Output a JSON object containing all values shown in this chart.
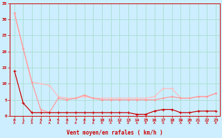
{
  "xlabel": "Vent moyen/en rafales ( km/h )",
  "bg_color": "#cceeff",
  "grid_color": "#aaddcc",
  "x": [
    0,
    1,
    2,
    3,
    4,
    5,
    6,
    7,
    8,
    9,
    10,
    11,
    12,
    13,
    14,
    15,
    16,
    17,
    18,
    19,
    20,
    21,
    22,
    23
  ],
  "line_dark_red": [
    14,
    4,
    1,
    1,
    1,
    1,
    1,
    1,
    1,
    1,
    1,
    1,
    1,
    1,
    0.5,
    0.5,
    1.5,
    2,
    2,
    1,
    1,
    1.5,
    1.5,
    1.5
  ],
  "line_light_pink1": [
    32,
    21,
    10.5,
    2,
    1,
    5.5,
    5,
    5.5,
    6.5,
    5.5,
    5,
    5,
    5,
    5,
    5,
    5,
    5,
    5.5,
    6,
    5.5,
    5.5,
    6,
    6,
    7
  ],
  "line_light_pink2": [
    32,
    21,
    10.5,
    10,
    9.5,
    6,
    5.5,
    5.5,
    6,
    5.5,
    5.5,
    5.5,
    5.5,
    5.5,
    5.5,
    5.5,
    6,
    8.5,
    8.5,
    5.5,
    5.5,
    6,
    6,
    7
  ],
  "ylim": [
    0,
    35
  ],
  "yticks": [
    0,
    5,
    10,
    15,
    20,
    25,
    30,
    35
  ],
  "dark_red": "#cc0000",
  "light_pink1": "#ff9999",
  "light_pink2": "#ffbbbb",
  "wind_angles": [
    225,
    45,
    315,
    315,
    315,
    315,
    315,
    315,
    315,
    270,
    90,
    90,
    135,
    45,
    270,
    270,
    45,
    315,
    315,
    315,
    315,
    315,
    315,
    315
  ]
}
